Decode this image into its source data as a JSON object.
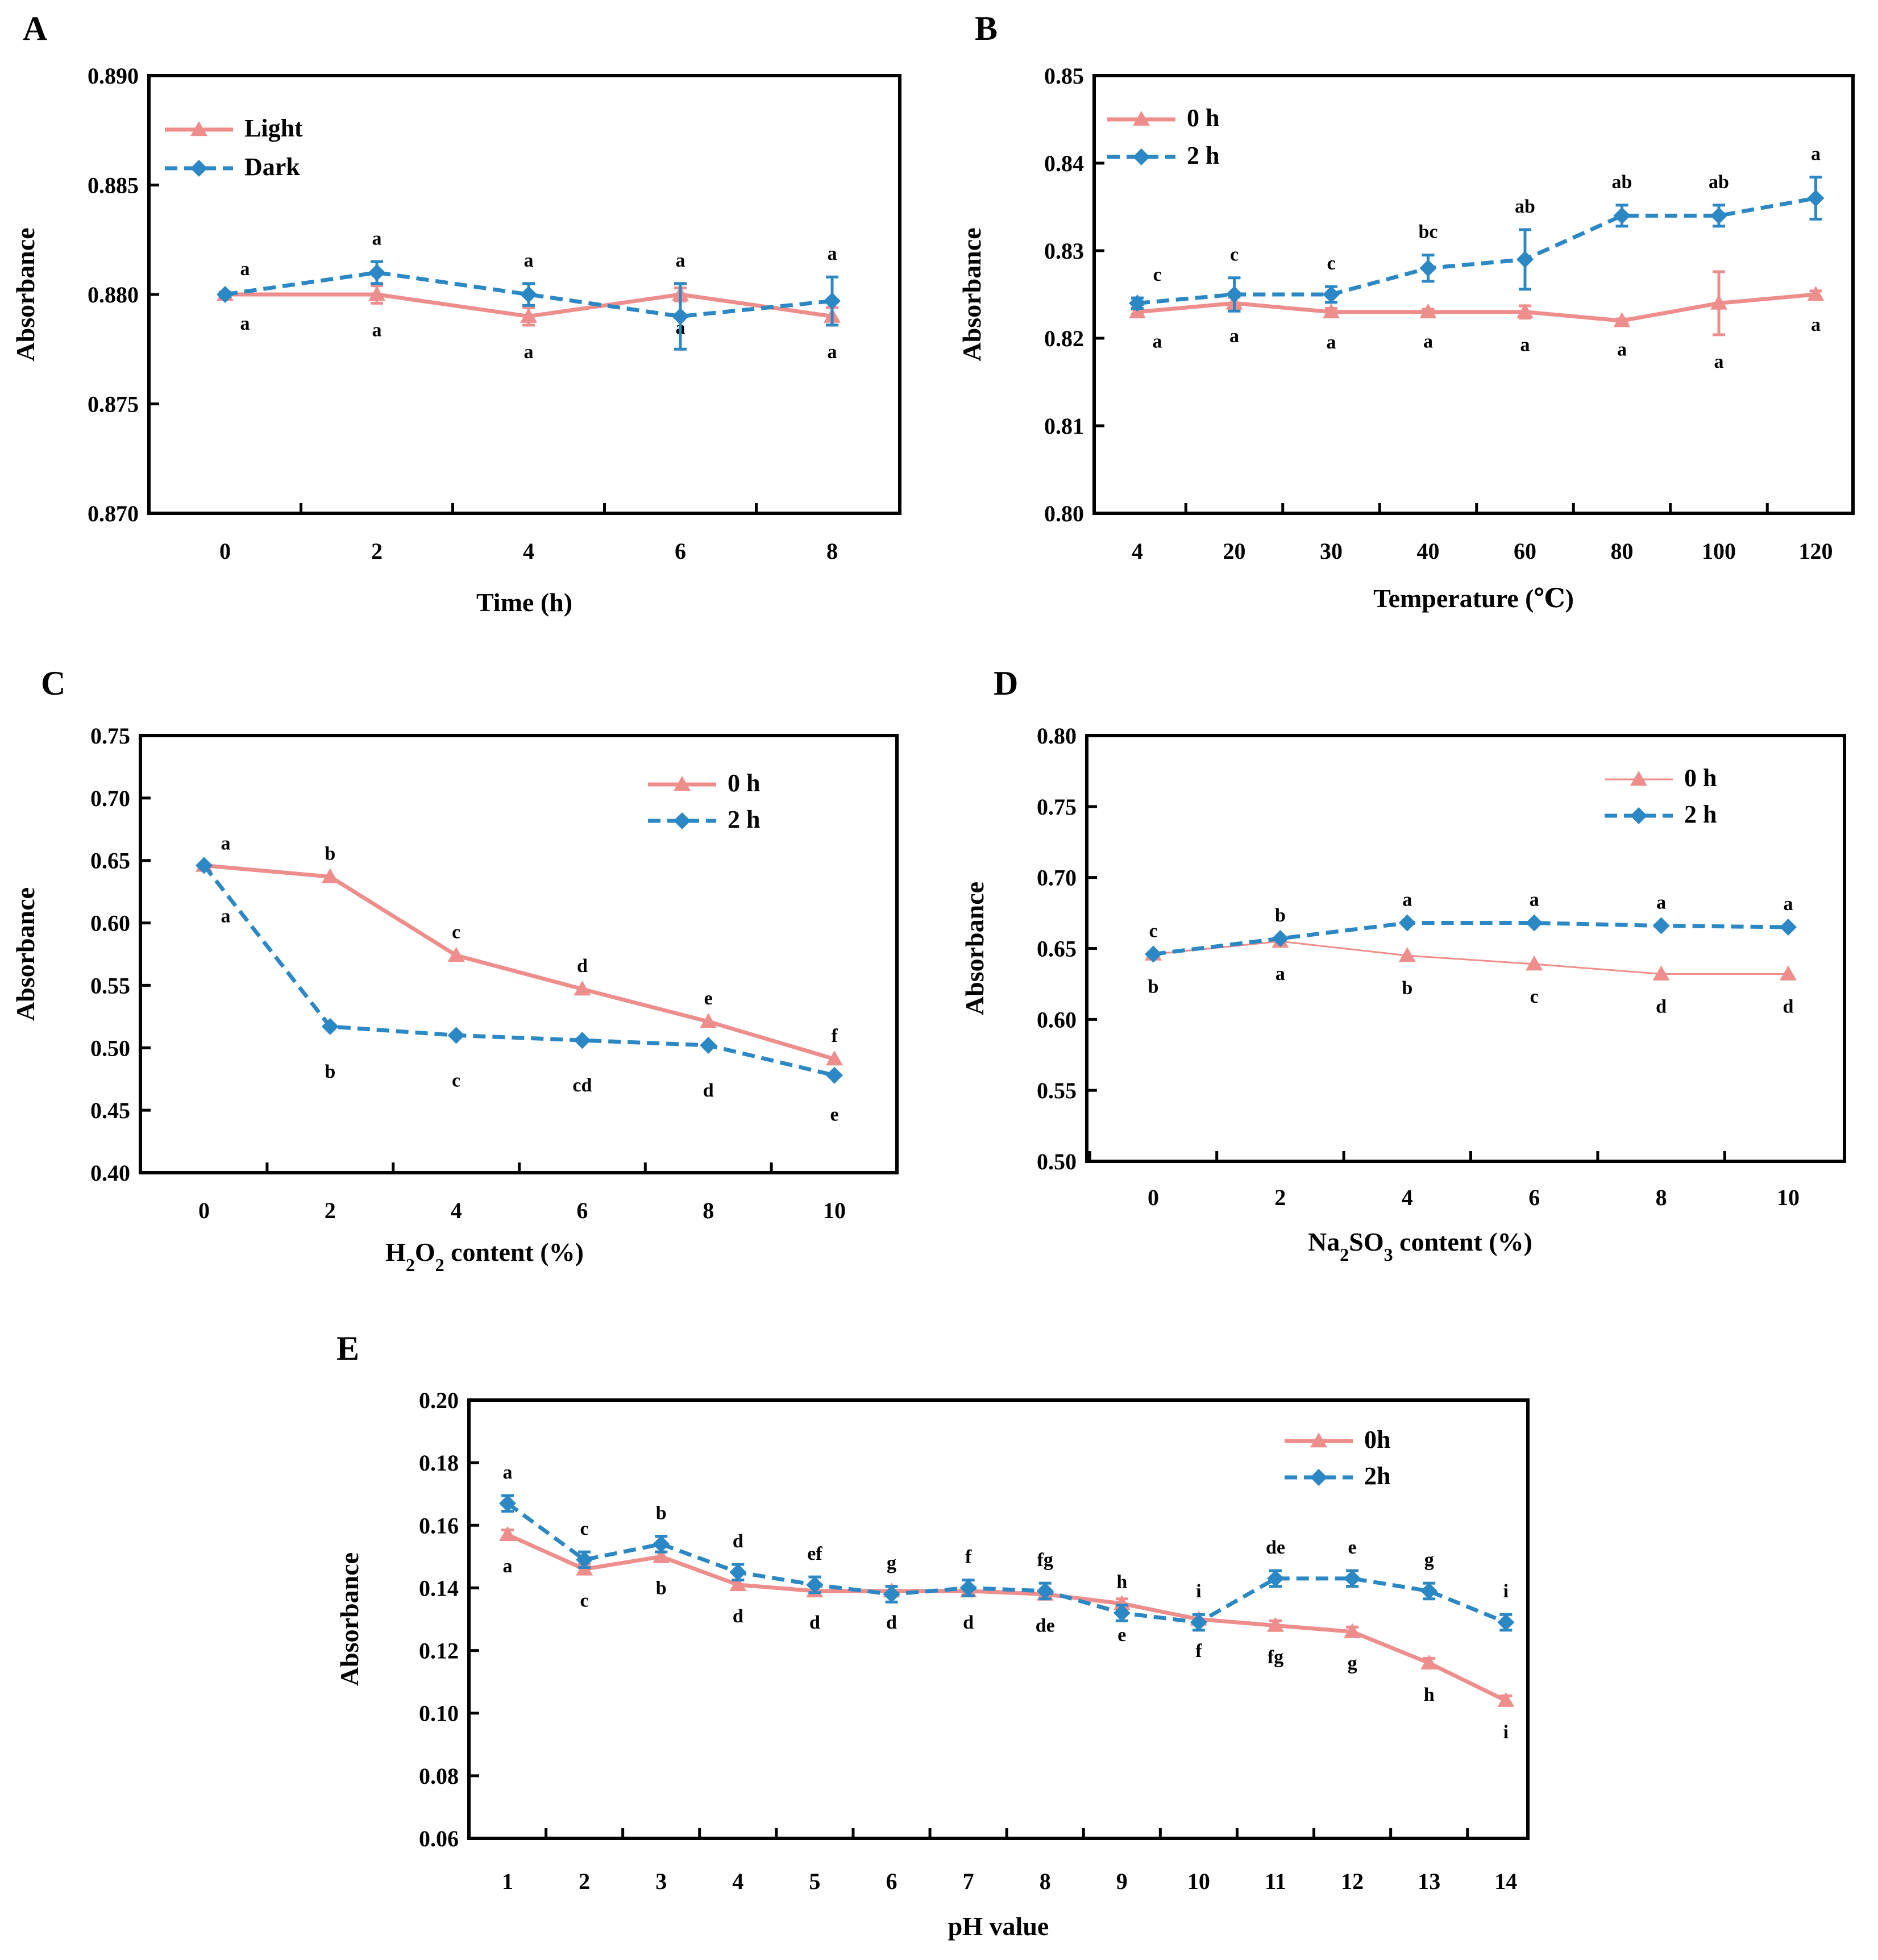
{
  "colors": {
    "light_series": "#EE8E8C",
    "dark_series": "#2B88C4"
  },
  "panels": [
    {
      "letter": "A",
      "xlabel": "Time (h)",
      "ylabel": "Absorbance",
      "x_ticks": [
        "0",
        "2",
        "4",
        "6",
        "8"
      ],
      "y_ticks": [
        "0.890",
        "0.885",
        "0.880",
        "0.875",
        "0.870"
      ],
      "legend": [
        "Light",
        "Dark"
      ]
    },
    {
      "letter": "B",
      "xlabel": "Temperature (℃)",
      "ylabel": "Absorbance",
      "x_ticks": [
        "4",
        "20",
        "30",
        "40",
        "60",
        "80",
        "100",
        "120"
      ],
      "y_ticks": [
        "0.85",
        "0.84",
        "0.83",
        "0.82",
        "0.81",
        "0.80"
      ],
      "legend": [
        "0 h",
        "2 h"
      ]
    },
    {
      "letter": "C",
      "xlabel": "H2O2 content (%)",
      "ylabel": "Absorbance",
      "x_ticks": [
        "0",
        "2",
        "4",
        "6",
        "8",
        "10"
      ],
      "y_ticks": [
        "0.75",
        "0.70",
        "0.65",
        "0.60",
        "0.55",
        "0.50",
        "0.45",
        "0.40"
      ],
      "legend": [
        "0 h",
        "2 h"
      ]
    },
    {
      "letter": "D",
      "xlabel": "Na2SO3 content (%)",
      "ylabel": "Absorbance",
      "x_ticks": [
        "0",
        "2",
        "4",
        "6",
        "8",
        "10"
      ],
      "y_ticks": [
        "0.80",
        "0.75",
        "0.70",
        "0.65",
        "0.60",
        "0.55",
        "0.50"
      ],
      "legend": [
        "0 h",
        "2 h"
      ]
    },
    {
      "letter": "E",
      "xlabel": "pH value",
      "ylabel": "Absorbance",
      "x_ticks": [
        "1",
        "2",
        "3",
        "4",
        "5",
        "6",
        "7",
        "8",
        "9",
        "10",
        "11",
        "12",
        "13",
        "14"
      ],
      "y_ticks": [
        "0.20",
        "0.18",
        "0.16",
        "0.14",
        "0.12",
        "0.10",
        "0.08",
        "0.06"
      ],
      "legend": [
        "0h",
        "2h"
      ]
    }
  ],
  "chart_data": [
    {
      "type": "line",
      "id": "A",
      "title": "",
      "xlabel": "Time (h)",
      "ylabel": "Absorbance",
      "x": [
        0,
        2,
        4,
        6,
        8
      ],
      "ylim": [
        0.87,
        0.89
      ],
      "yticks": [
        0.87,
        0.875,
        0.88,
        0.885,
        0.89
      ],
      "legend_position": "top-left",
      "series": [
        {
          "name": "Light",
          "style": "solid",
          "marker": "triangle",
          "values": [
            0.88,
            0.88,
            0.879,
            0.88,
            0.879
          ],
          "errors": [
            0.0001,
            0.0004,
            0.0004,
            0.0003,
            0.0004
          ],
          "letters": [
            "a",
            "a",
            "a",
            "a",
            "a"
          ]
        },
        {
          "name": "Dark",
          "style": "dashed",
          "marker": "diamond",
          "values": [
            0.88,
            0.881,
            0.88,
            0.879,
            0.8797
          ],
          "errors": [
            0.0001,
            0.0005,
            0.0005,
            0.0015,
            0.0011
          ],
          "letters": [
            "a",
            "a",
            "a",
            "a",
            "a"
          ]
        }
      ]
    },
    {
      "type": "line",
      "id": "B",
      "title": "",
      "xlabel": "Temperature (℃)",
      "ylabel": "Absorbance",
      "x": [
        4,
        20,
        30,
        40,
        60,
        80,
        100,
        120
      ],
      "x_spacing": "categorical",
      "ylim": [
        0.8,
        0.85
      ],
      "yticks": [
        0.8,
        0.81,
        0.82,
        0.83,
        0.84,
        0.85
      ],
      "legend_position": "top-left",
      "series": [
        {
          "name": "0 h",
          "style": "solid",
          "marker": "triangle",
          "values": [
            0.823,
            0.824,
            0.823,
            0.823,
            0.823,
            0.822,
            0.824,
            0.825
          ],
          "errors": [
            0.0003,
            0.0007,
            0.0004,
            0.0003,
            0.0007,
            0.0002,
            0.0036,
            0.0004
          ],
          "letters": [
            "a",
            "a",
            "a",
            "a",
            "a",
            "a",
            "a",
            "a"
          ]
        },
        {
          "name": "2 h",
          "style": "dashed",
          "marker": "diamond",
          "values": [
            0.824,
            0.825,
            0.825,
            0.828,
            0.829,
            0.834,
            0.834,
            0.836
          ],
          "errors": [
            0.0006,
            0.0019,
            0.0009,
            0.0015,
            0.0034,
            0.0012,
            0.0012,
            0.0024
          ],
          "letters": [
            "c",
            "c",
            "c",
            "bc",
            "ab",
            "ab",
            "ab",
            "a"
          ]
        }
      ]
    },
    {
      "type": "line",
      "id": "C",
      "title": "",
      "xlabel": "H2O2 content (%)",
      "ylabel": "Absorbance",
      "x": [
        0,
        2,
        4,
        6,
        8,
        10
      ],
      "ylim": [
        0.4,
        0.75
      ],
      "yticks": [
        0.4,
        0.45,
        0.5,
        0.55,
        0.6,
        0.65,
        0.7,
        0.75
      ],
      "legend_position": "top-right",
      "series": [
        {
          "name": "0 h",
          "style": "solid",
          "marker": "triangle",
          "values": [
            0.646,
            0.637,
            0.574,
            0.547,
            0.521,
            0.491
          ],
          "letters": [
            "a",
            "b",
            "c",
            "d",
            "e",
            "f"
          ]
        },
        {
          "name": "2 h",
          "style": "dashed",
          "marker": "diamond",
          "values": [
            0.646,
            0.517,
            0.51,
            0.506,
            0.502,
            0.478
          ],
          "letters": [
            "a",
            "b",
            "c",
            "cd",
            "d",
            "e"
          ]
        }
      ]
    },
    {
      "type": "line",
      "id": "D",
      "title": "",
      "xlabel": "Na2SO3 content (%)",
      "ylabel": "Absorbance",
      "x": [
        0,
        2,
        4,
        6,
        8,
        10
      ],
      "ylim": [
        0.5,
        0.8
      ],
      "yticks": [
        0.5,
        0.55,
        0.6,
        0.65,
        0.7,
        0.75,
        0.8
      ],
      "legend_position": "top-right",
      "series": [
        {
          "name": "0 h",
          "style": "solid-thin",
          "marker": "triangle",
          "values": [
            0.646,
            0.655,
            0.645,
            0.639,
            0.632,
            0.632
          ],
          "letters": [
            "b",
            "a",
            "b",
            "c",
            "d",
            "d"
          ]
        },
        {
          "name": "2 h",
          "style": "dashed",
          "marker": "diamond",
          "values": [
            0.646,
            0.657,
            0.668,
            0.668,
            0.666,
            0.665
          ],
          "letters": [
            "c",
            "b",
            "a",
            "a",
            "a",
            "a"
          ]
        }
      ]
    },
    {
      "type": "line",
      "id": "E",
      "title": "",
      "xlabel": "pH value",
      "ylabel": "Absorbance",
      "x": [
        1,
        2,
        3,
        4,
        5,
        6,
        7,
        8,
        9,
        10,
        11,
        12,
        13,
        14
      ],
      "ylim": [
        0.06,
        0.2
      ],
      "yticks": [
        0.06,
        0.08,
        0.1,
        0.12,
        0.14,
        0.16,
        0.18,
        0.2
      ],
      "legend_position": "top-right",
      "series": [
        {
          "name": "0h",
          "style": "solid",
          "marker": "triangle",
          "values": [
            0.157,
            0.146,
            0.15,
            0.141,
            0.139,
            0.139,
            0.139,
            0.138,
            0.135,
            0.13,
            0.128,
            0.126,
            0.116,
            0.104
          ],
          "errors": [
            0.0015,
            0.0015,
            0.0015,
            0.0015,
            0.0015,
            0.0015,
            0.0015,
            0.0015,
            0.0015,
            0.0015,
            0.0015,
            0.0015,
            0.0015,
            0.0015
          ],
          "letters": [
            "a",
            "c",
            "b",
            "d",
            "d",
            "d",
            "d",
            "de",
            "e",
            "f",
            "fg",
            "g",
            "h",
            "i"
          ]
        },
        {
          "name": "2h",
          "style": "dashed",
          "marker": "diamond",
          "values": [
            0.167,
            0.149,
            0.154,
            0.145,
            0.141,
            0.138,
            0.14,
            0.139,
            0.132,
            0.129,
            0.143,
            0.143,
            0.139,
            0.129
          ],
          "errors": [
            0.0025,
            0.0025,
            0.0025,
            0.0025,
            0.0025,
            0.0025,
            0.0025,
            0.0025,
            0.0025,
            0.0025,
            0.0025,
            0.0025,
            0.0025,
            0.0025
          ],
          "letters": [
            "a",
            "c",
            "b",
            "d",
            "ef",
            "g",
            "f",
            "fg",
            "h",
            "i",
            "de",
            "e",
            "g",
            "i"
          ]
        }
      ]
    }
  ]
}
